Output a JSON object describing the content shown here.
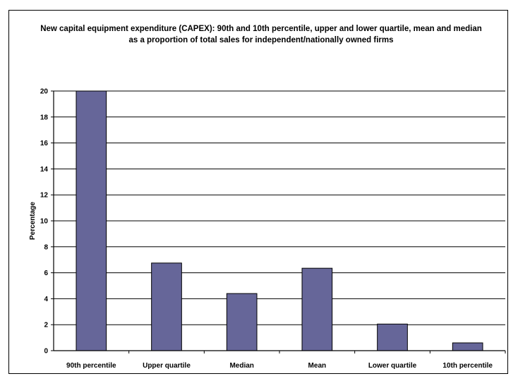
{
  "chart_data": {
    "type": "bar",
    "title": "New capital equipment expenditure (CAPEX): 90th and 10th percentile, upper and lower quartile, mean and median as a proportion of total sales for independent/nationally owned firms",
    "xlabel": "",
    "ylabel": "Percentage",
    "categories": [
      "90th percentile",
      "Upper quartile",
      "Median",
      "Mean",
      "Lower quartile",
      "10th percentile"
    ],
    "values": [
      20.0,
      6.75,
      4.4,
      6.35,
      2.05,
      0.6
    ],
    "ylim": [
      0,
      20
    ],
    "yticks": [
      0,
      2,
      4,
      6,
      8,
      10,
      12,
      14,
      16,
      18,
      20
    ],
    "grid": true,
    "legend": "none",
    "colors": {
      "bar_fill": "#666699",
      "bar_stroke": "#000000",
      "grid": "#000000",
      "background": "#ffffff"
    }
  }
}
